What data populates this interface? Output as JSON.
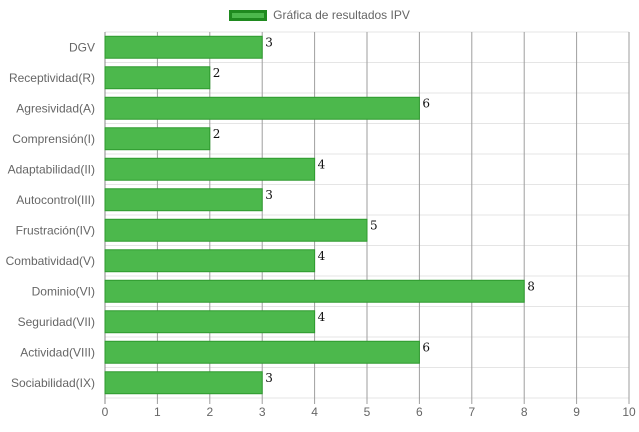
{
  "chart_data": {
    "type": "bar",
    "orientation": "horizontal",
    "series": [
      {
        "name": "Gráfica de resultados IPV",
        "values": [
          3,
          2,
          6,
          2,
          4,
          3,
          5,
          4,
          8,
          4,
          6,
          3
        ]
      }
    ],
    "categories": [
      "DGV",
      "Receptividad(R)",
      "Agresividad(A)",
      "Comprensión(I)",
      "Adaptabilidad(II)",
      "Autocontrol(III)",
      "Frustración(IV)",
      "Combatividad(V)",
      "Dominio(VI)",
      "Seguridad(VII)",
      "Actividad(VIII)",
      "Sociabilidad(IX)"
    ],
    "xlim": [
      0,
      10
    ],
    "xticks": [
      "0",
      "1",
      "2",
      "3",
      "4",
      "5",
      "6",
      "7",
      "8",
      "9",
      "10"
    ],
    "data_labels": true,
    "grid": true,
    "legend_position": "top-center",
    "colors": {
      "bar_fill": "#4cb84c",
      "bar_border": "#2e9a2e",
      "legend_border": "#1f8a1f",
      "grid": "#e5e5e5",
      "vgrid": "#9e9e9e",
      "text": "#666666",
      "label_text": "#111111"
    }
  }
}
